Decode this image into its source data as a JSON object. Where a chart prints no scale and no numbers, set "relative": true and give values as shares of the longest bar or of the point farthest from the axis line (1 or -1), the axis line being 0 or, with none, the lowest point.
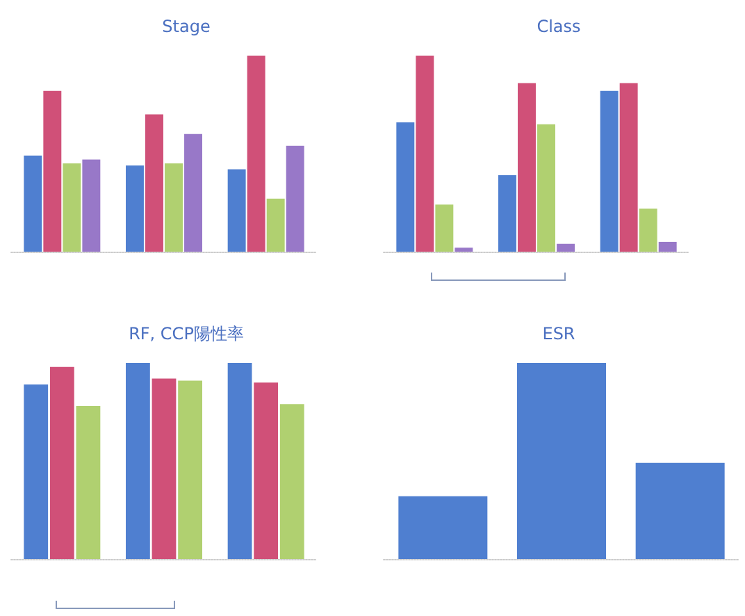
{
  "chart_data": [
    {
      "type": "bar",
      "title": "Stage",
      "categories": [
        null,
        null,
        null
      ],
      "relative": true,
      "series": [
        {
          "color": "#4f7fd0",
          "values": [
            0.49,
            0.44,
            0.42
          ]
        },
        {
          "color": "#d05078",
          "values": [
            0.82,
            0.7,
            1
          ]
        },
        {
          "color": "#b0d070",
          "values": [
            0.45,
            0.45,
            0.27
          ]
        },
        {
          "color": "#9878c8",
          "values": [
            0.47,
            0.6,
            0.54
          ]
        }
      ]
    },
    {
      "type": "bar",
      "title": "Class",
      "categories": [
        null,
        null,
        null
      ],
      "relative": true,
      "series": [
        {
          "color": "#4f7fd0",
          "values": [
            0.66,
            0.39,
            0.82
          ]
        },
        {
          "color": "#d05078",
          "values": [
            1,
            0.86,
            0.86
          ]
        },
        {
          "color": "#b0d070",
          "values": [
            0.24,
            0.65,
            0.22
          ]
        },
        {
          "color": "#9878c8",
          "values": [
            0.02,
            0.04,
            0.05
          ]
        }
      ]
    },
    {
      "type": "bar",
      "title": "RF, CCP陽性率",
      "categories": [
        null,
        null,
        null
      ],
      "relative": true,
      "series": [
        {
          "color": "#4f7fd0",
          "values": [
            0.89,
            1,
            1
          ]
        },
        {
          "color": "#d05078",
          "values": [
            0.98,
            0.92,
            0.9
          ]
        },
        {
          "color": "#b0d070",
          "values": [
            0.78,
            0.91,
            0.79
          ]
        }
      ]
    },
    {
      "type": "bar",
      "title": "ESR",
      "categories": [
        null,
        null,
        null
      ],
      "relative": true,
      "color": "#4f7fd0",
      "values": [
        0.32,
        1,
        0.49
      ]
    }
  ]
}
